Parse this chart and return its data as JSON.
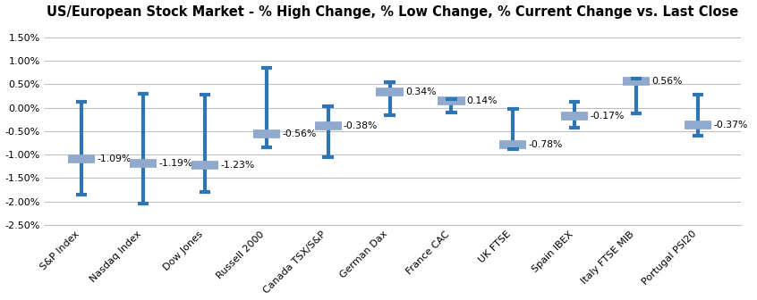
{
  "title": "US/European Stock Market - % High Change, % Low Change, % Current Change vs. Last Close",
  "categories": [
    "S&P Index",
    "Nasdaq Index",
    "Dow Jones",
    "Russell 2000",
    "Canada TSX/S&P",
    "German Dax",
    "France CAC",
    "UK FTSE",
    "Spain IBEX",
    "Italy FTSE MIB",
    "Portugal PSI20"
  ],
  "high": [
    0.12,
    0.3,
    0.28,
    0.85,
    0.03,
    0.55,
    0.18,
    -0.03,
    0.13,
    0.62,
    0.27
  ],
  "low": [
    -1.85,
    -2.05,
    -1.8,
    -0.85,
    -1.05,
    -0.15,
    -0.1,
    -0.88,
    -0.42,
    -0.12,
    -0.6
  ],
  "current": [
    -1.09,
    -1.19,
    -1.23,
    -0.56,
    -0.38,
    0.34,
    0.14,
    -0.78,
    -0.17,
    0.56,
    -0.37
  ],
  "ylim": [
    -2.5,
    1.75
  ],
  "yticks": [
    -2.5,
    -2.0,
    -1.5,
    -1.0,
    -0.5,
    0.0,
    0.5,
    1.0,
    1.5
  ],
  "bar_color": "#2E75B6",
  "current_marker_color": "#8FAACC",
  "background_color": "#FFFFFF",
  "grid_color": "#BFBFBF",
  "title_fontsize": 10.5,
  "tick_fontsize": 8
}
